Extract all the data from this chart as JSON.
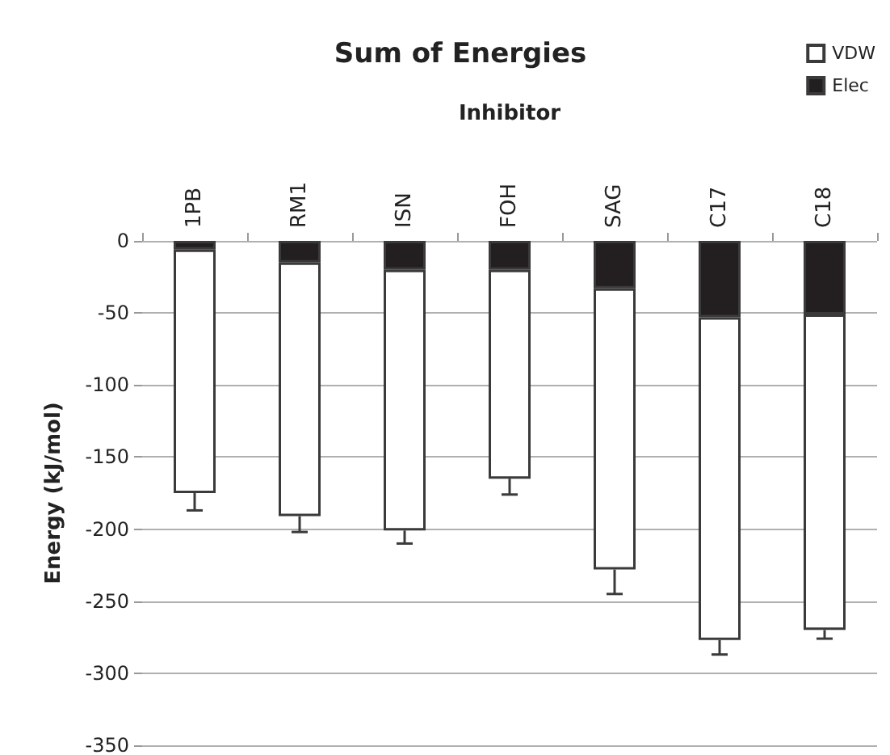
{
  "chart_data": {
    "type": "bar",
    "title": "Sum of Energies",
    "xlabel": "Inhibitor",
    "ylabel": "Energy (kJ/mol)",
    "categories": [
      "1PB",
      "RM1",
      "ISN",
      "FOH",
      "SAG",
      "C17",
      "C18"
    ],
    "stacked": true,
    "series": [
      {
        "name": "Elec",
        "color": "#231f20",
        "values": [
          -6,
          -15,
          -20,
          -20,
          -33,
          -53,
          -51
        ]
      },
      {
        "name": "VDW",
        "color": "#ffffff",
        "values": [
          -169,
          -176,
          -181,
          -145,
          -195,
          -224,
          -219
        ],
        "errors": [
          [
            -187,
            -175
          ],
          [
            -202,
            -191
          ],
          [
            -210,
            -201
          ],
          [
            -176,
            -165
          ],
          [
            -245,
            -228
          ],
          [
            -287,
            -277
          ],
          [
            -276,
            -270
          ]
        ]
      }
    ],
    "ylim": [
      -350,
      0
    ],
    "yticks": [
      0,
      -50,
      -100,
      -150,
      -200,
      -250,
      -300,
      -350
    ],
    "grid": "y",
    "legend": "top right"
  }
}
